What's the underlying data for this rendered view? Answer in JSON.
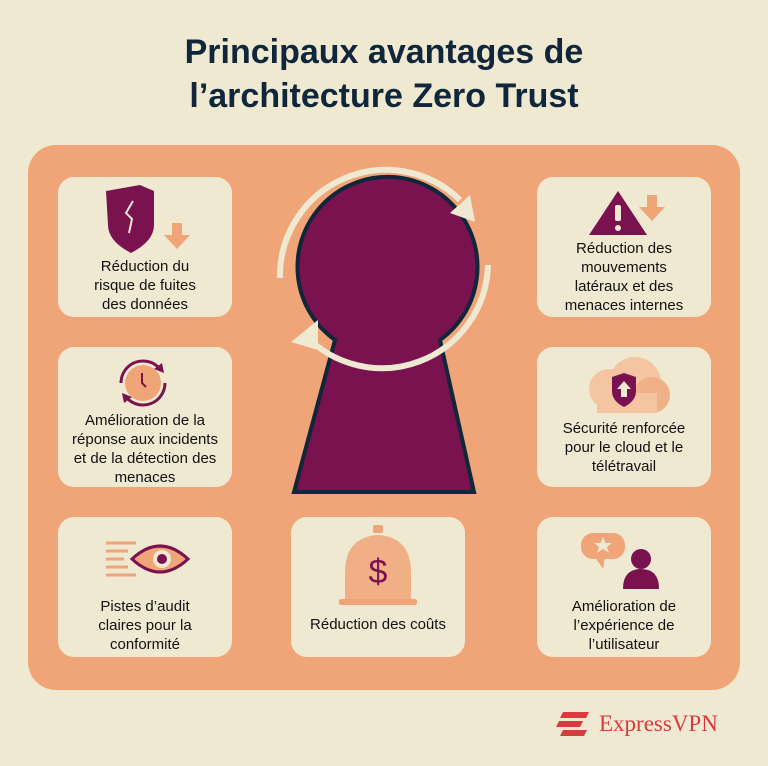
{
  "title": {
    "line1": "Principaux avantages de",
    "line2": "l’architecture Zero Trust"
  },
  "colors": {
    "background": "#efe9d2",
    "panel": "#f0a578",
    "accent": "#7b1250",
    "title": "#10263a",
    "brand": "#da3940"
  },
  "cards": [
    {
      "icon": "broken-shield-down-arrow-icon",
      "lines": [
        "Réduction du",
        "risque de fuites",
        "des données"
      ]
    },
    {
      "icon": "clock-refresh-icon",
      "lines": [
        "Amélioration de la",
        "réponse aux incidents",
        "et de la détection des",
        "menaces"
      ]
    },
    {
      "icon": "eye-document-icon",
      "lines": [
        "Pistes d’audit",
        "claires pour la",
        "conformité"
      ]
    },
    {
      "icon": "money-bag-icon",
      "lines": [
        "Réduction des coûts"
      ]
    },
    {
      "icon": "warning-down-arrow-icon",
      "lines": [
        "Réduction des",
        "mouvements",
        "latéraux et des",
        "menaces internes"
      ]
    },
    {
      "icon": "cloud-shield-icon",
      "lines": [
        "Sécurité renforcée",
        "pour le cloud et le",
        "télétravail"
      ]
    },
    {
      "icon": "user-star-feedback-icon",
      "lines": [
        "Amélioration de",
        "l’expérience de",
        "l’utilisateur"
      ]
    }
  ],
  "logo": {
    "text": "ExpressVPN"
  }
}
